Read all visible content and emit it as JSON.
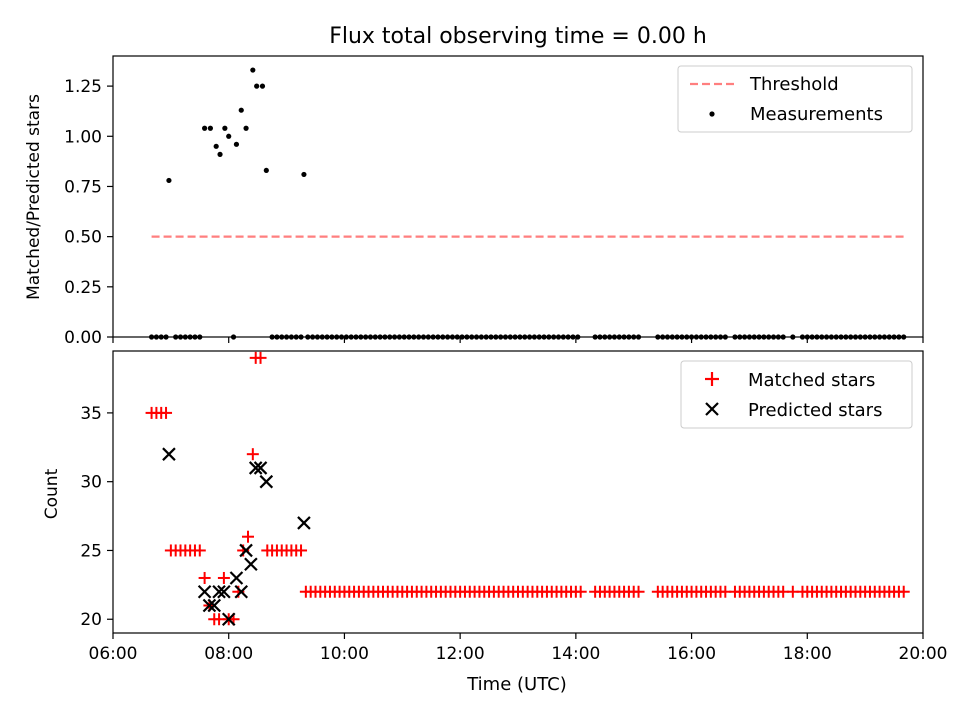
{
  "chart_data": [
    {
      "type": "line",
      "title": "Flux total observing time = 0.00 h",
      "xlabel": "",
      "ylabel": "Matched/Predicted stars",
      "xlim": [
        "06:00",
        "20:00"
      ],
      "ylim": [
        0,
        1.4
      ],
      "yticks": [
        "0.00",
        "0.25",
        "0.50",
        "0.75",
        "1.00",
        "1.25"
      ],
      "legend_position": "top-right",
      "colors": {
        "threshold": "#ff7f7f",
        "measurements": "#000000"
      },
      "series": [
        {
          "name": "Threshold",
          "style": "dashed",
          "x": [
            "06:40",
            "19:40"
          ],
          "y": [
            0.5,
            0.5
          ]
        },
        {
          "name": "Measurements",
          "style": "points",
          "points": [
            {
              "x": "06:58",
              "y": 0.78
            },
            {
              "x": "07:35",
              "y": 1.04
            },
            {
              "x": "07:41",
              "y": 1.04
            },
            {
              "x": "07:47",
              "y": 0.95
            },
            {
              "x": "07:51",
              "y": 0.91
            },
            {
              "x": "07:56",
              "y": 1.04
            },
            {
              "x": "08:00",
              "y": 1.0
            },
            {
              "x": "08:08",
              "y": 0.96
            },
            {
              "x": "08:13",
              "y": 1.13
            },
            {
              "x": "08:18",
              "y": 1.04
            },
            {
              "x": "08:25",
              "y": 1.33
            },
            {
              "x": "08:29",
              "y": 1.25
            },
            {
              "x": "08:35",
              "y": 1.25
            },
            {
              "x": "08:39",
              "y": 0.83
            },
            {
              "x": "09:18",
              "y": 0.81
            }
          ],
          "zero_value_ranges": [
            [
              "06:40",
              "06:58"
            ],
            [
              "07:05",
              "07:30"
            ],
            [
              "08:05",
              "08:05"
            ],
            [
              "08:45",
              "09:15"
            ],
            [
              "09:22",
              "14:05"
            ],
            [
              "14:20",
              "15:05"
            ],
            [
              "15:25",
              "16:10"
            ],
            [
              "16:15",
              "16:35"
            ],
            [
              "16:45",
              "17:35"
            ],
            [
              "17:45",
              "17:45"
            ],
            [
              "17:55",
              "19:40"
            ]
          ]
        }
      ]
    },
    {
      "type": "scatter",
      "xlabel": "Time (UTC)",
      "ylabel": "Count",
      "xlim": [
        "06:00",
        "20:00"
      ],
      "ylim": [
        19,
        39.5
      ],
      "xticks": [
        "06:00",
        "08:00",
        "10:00",
        "12:00",
        "14:00",
        "16:00",
        "18:00",
        "20:00"
      ],
      "yticks": [
        "20",
        "25",
        "30",
        "35"
      ],
      "legend_position": "top-right",
      "colors": {
        "matched": "#ff0000",
        "predicted": "#000000"
      },
      "series": [
        {
          "name": "Matched stars",
          "marker": "+",
          "points": [
            {
              "x": "06:40",
              "y": 35
            },
            {
              "x": "06:45",
              "y": 35
            },
            {
              "x": "06:50",
              "y": 35
            },
            {
              "x": "06:55",
              "y": 35
            },
            {
              "x": "07:00",
              "y": 25
            },
            {
              "x": "07:05",
              "y": 25
            },
            {
              "x": "07:10",
              "y": 25
            },
            {
              "x": "07:15",
              "y": 25
            },
            {
              "x": "07:20",
              "y": 25
            },
            {
              "x": "07:25",
              "y": 25
            },
            {
              "x": "07:30",
              "y": 25
            },
            {
              "x": "07:35",
              "y": 23
            },
            {
              "x": "07:40",
              "y": 21
            },
            {
              "x": "07:45",
              "y": 20
            },
            {
              "x": "07:50",
              "y": 20
            },
            {
              "x": "07:55",
              "y": 23
            },
            {
              "x": "08:00",
              "y": 20
            },
            {
              "x": "08:05",
              "y": 20
            },
            {
              "x": "08:10",
              "y": 22
            },
            {
              "x": "08:15",
              "y": 25
            },
            {
              "x": "08:20",
              "y": 26
            },
            {
              "x": "08:25",
              "y": 32
            },
            {
              "x": "08:28",
              "y": 39
            },
            {
              "x": "08:33",
              "y": 39
            },
            {
              "x": "08:40",
              "y": 25
            },
            {
              "x": "08:45",
              "y": 25
            },
            {
              "x": "08:50",
              "y": 25
            },
            {
              "x": "08:55",
              "y": 25
            },
            {
              "x": "09:00",
              "y": 25
            },
            {
              "x": "09:05",
              "y": 25
            },
            {
              "x": "09:10",
              "y": 25
            },
            {
              "x": "09:15",
              "y": 25
            }
          ],
          "constant_runs": [
            {
              "from": "09:20",
              "to": "14:05",
              "y": 22
            },
            {
              "from": "14:20",
              "to": "15:05",
              "y": 22
            },
            {
              "from": "15:25",
              "to": "16:10",
              "y": 22
            },
            {
              "from": "16:15",
              "to": "16:35",
              "y": 22
            },
            {
              "from": "16:45",
              "to": "17:35",
              "y": 22
            },
            {
              "from": "17:45",
              "to": "17:45",
              "y": 22
            },
            {
              "from": "17:55",
              "to": "19:40",
              "y": 22
            }
          ]
        },
        {
          "name": "Predicted stars",
          "marker": "x",
          "points": [
            {
              "x": "06:58",
              "y": 32
            },
            {
              "x": "07:35",
              "y": 22
            },
            {
              "x": "07:40",
              "y": 21
            },
            {
              "x": "07:45",
              "y": 21
            },
            {
              "x": "07:50",
              "y": 22
            },
            {
              "x": "07:55",
              "y": 22
            },
            {
              "x": "08:00",
              "y": 20
            },
            {
              "x": "08:08",
              "y": 23
            },
            {
              "x": "08:13",
              "y": 22
            },
            {
              "x": "08:18",
              "y": 25
            },
            {
              "x": "08:23",
              "y": 24
            },
            {
              "x": "08:28",
              "y": 31
            },
            {
              "x": "08:33",
              "y": 31
            },
            {
              "x": "08:39",
              "y": 30
            },
            {
              "x": "09:18",
              "y": 27
            }
          ]
        }
      ]
    }
  ]
}
